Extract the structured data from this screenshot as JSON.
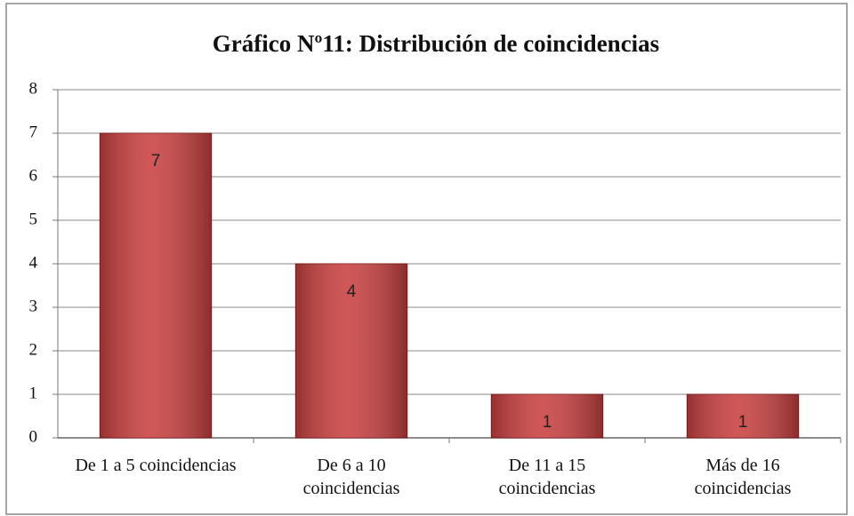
{
  "chart_data": {
    "type": "bar",
    "title": "Gráfico Nº11: Distribución de coincidencias",
    "categories": [
      "De 1 a 5 coincidencias",
      "De 6 a 10 coincidencias",
      "De 11 a 15 coincidencias",
      "Más de 16 coincidencias"
    ],
    "values": [
      7,
      4,
      1,
      1
    ],
    "color": "#c94040",
    "ylim": [
      0,
      8
    ],
    "yticks": [
      0,
      1,
      2,
      3,
      4,
      5,
      6,
      7,
      8
    ],
    "grid": true
  }
}
